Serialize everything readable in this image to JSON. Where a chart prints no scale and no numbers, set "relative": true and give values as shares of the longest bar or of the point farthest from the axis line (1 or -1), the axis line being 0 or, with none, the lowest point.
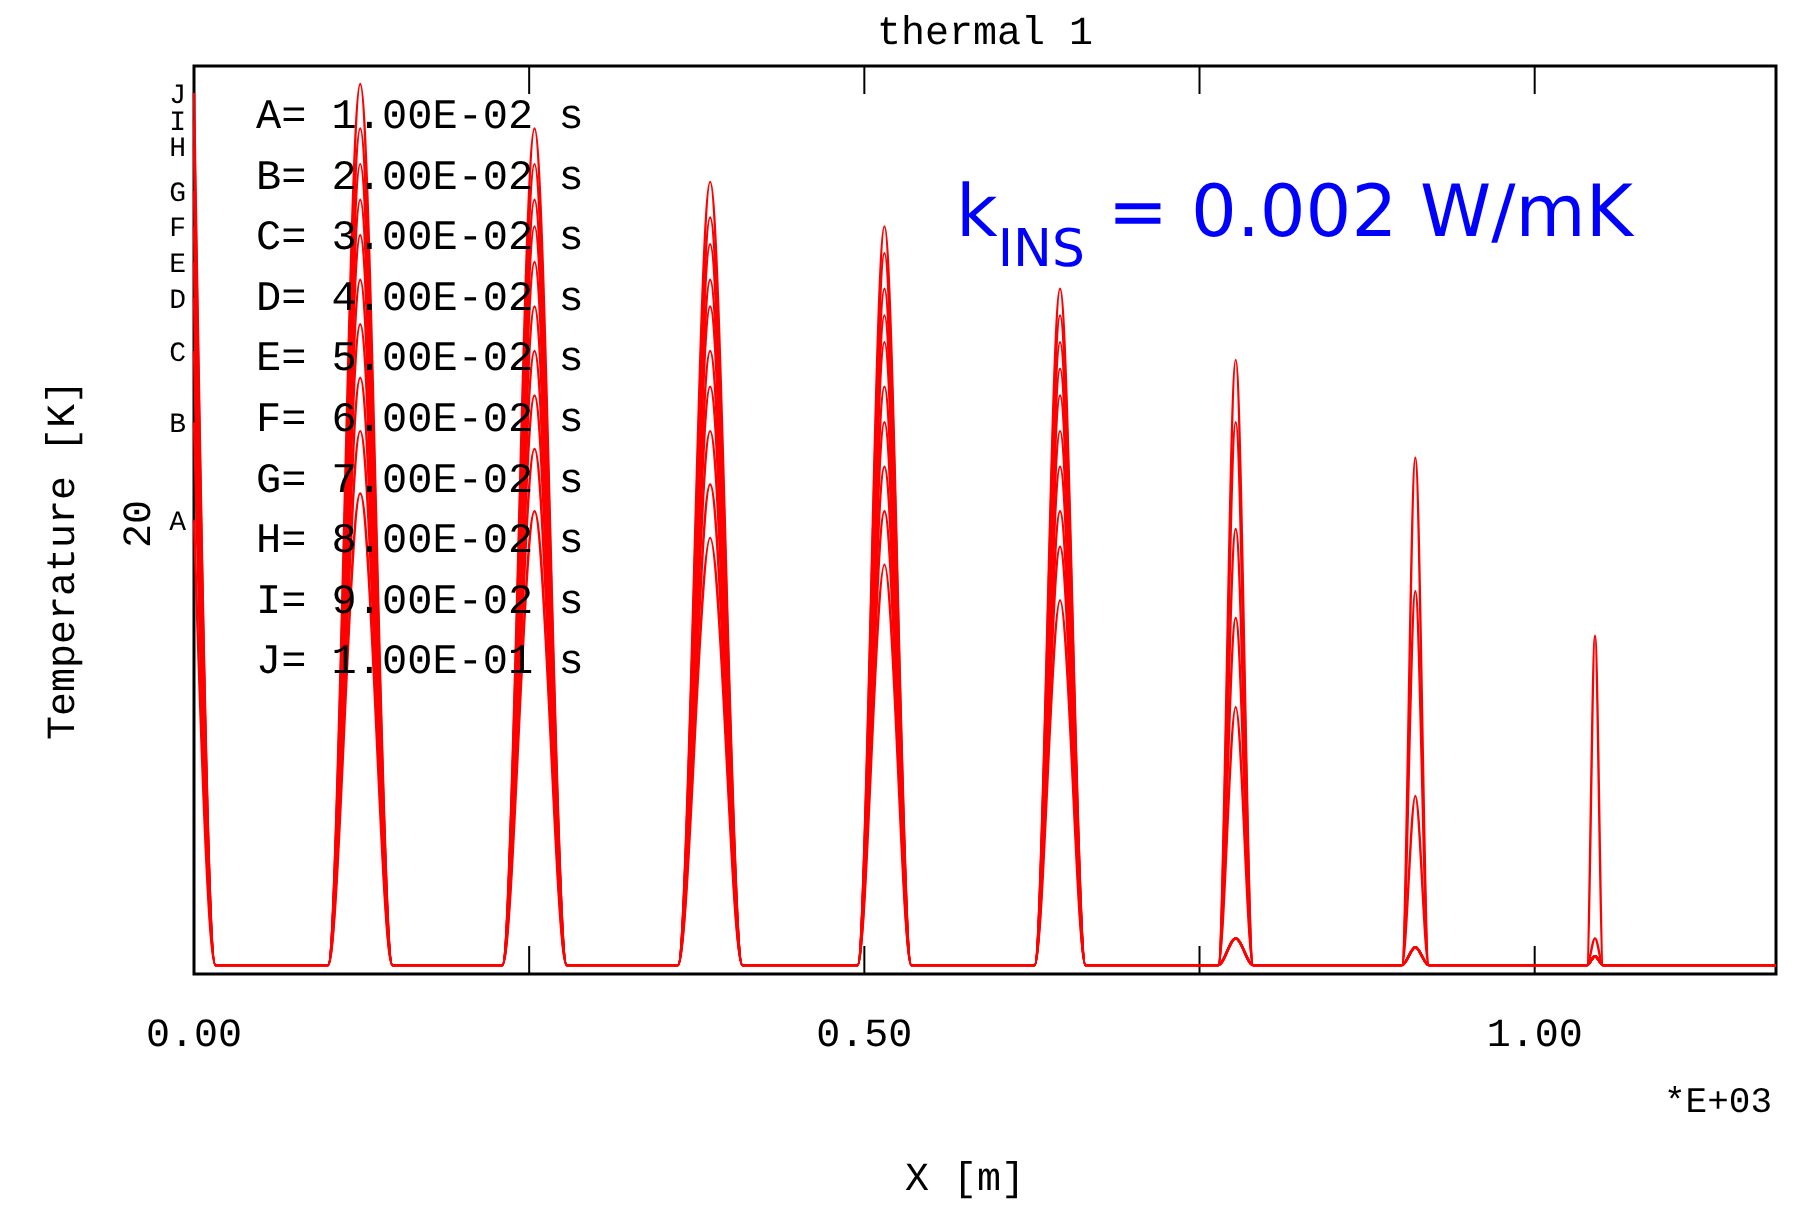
{
  "chart_data": {
    "type": "line",
    "title": "thermal 1",
    "xlabel": "X [m]",
    "ylabel": "Temperature [K]",
    "relative": true,
    "xlim": [
      0,
      1.18
    ],
    "xticks": [
      {
        "value": 0,
        "label": "0.00"
      },
      {
        "value": 0.25,
        "label": null
      },
      {
        "value": 0.5,
        "label": "0.50"
      },
      {
        "value": 0.75,
        "label": null
      },
      {
        "value": 1,
        "label": "1.00"
      }
    ],
    "x": [
      0,
      0.016,
      0.1,
      0.124,
      0.148,
      0.23,
      0.254,
      0.278,
      0.361,
      0.385,
      0.409,
      0.495,
      0.515,
      0.535,
      0.627,
      0.646,
      0.665,
      0.764,
      0.777,
      0.79,
      0.901,
      0.911,
      0.921,
      1.039,
      1.045,
      1.051,
      1.18
    ],
    "series": [
      {
        "name": "A",
        "color": "#ff0000",
        "values": [
          0.51,
          0.01,
          0.01,
          0.54,
          0.01,
          0.01,
          0.52,
          0.01,
          0.01,
          0.49,
          0.01,
          0.01,
          0.46,
          0.01,
          0.01,
          0.42,
          0.01,
          0.01,
          0.04,
          0.01,
          0.01,
          0.03,
          0.01,
          0.01,
          0.02,
          0.01,
          0.01
        ]
      },
      {
        "name": "B",
        "color": "#ff0000",
        "values": [
          0.62,
          0.01,
          0.01,
          0.61,
          0.01,
          0.01,
          0.59,
          0.01,
          0.01,
          0.55,
          0.01,
          0.01,
          0.52,
          0.01,
          0.01,
          0.48,
          0.01,
          0.01,
          0.04,
          0.01,
          0.01,
          0.03,
          0.01,
          0.01,
          0.02,
          0.01,
          0.01
        ]
      },
      {
        "name": "C",
        "color": "#ff0000",
        "values": [
          0.7,
          0.01,
          0.01,
          0.67,
          0.01,
          0.01,
          0.65,
          0.01,
          0.01,
          0.61,
          0.01,
          0.01,
          0.57,
          0.01,
          0.01,
          0.52,
          0.01,
          0.01,
          0.04,
          0.01,
          0.01,
          0.03,
          0.01,
          0.01,
          0.02,
          0.01,
          0.01
        ]
      },
      {
        "name": "D",
        "color": "#ff0000",
        "values": [
          0.76,
          0.01,
          0.01,
          0.73,
          0.01,
          0.01,
          0.7,
          0.01,
          0.01,
          0.66,
          0.01,
          0.01,
          0.62,
          0.01,
          0.01,
          0.57,
          0.01,
          0.01,
          0.04,
          0.01,
          0.01,
          0.03,
          0.01,
          0.01,
          0.02,
          0.01,
          0.01
        ]
      },
      {
        "name": "E",
        "color": "#ff0000",
        "values": [
          0.8,
          0.01,
          0.01,
          0.78,
          0.01,
          0.01,
          0.75,
          0.01,
          0.01,
          0.7,
          0.01,
          0.01,
          0.66,
          0.01,
          0.01,
          0.61,
          0.01,
          0.01,
          0.04,
          0.01,
          0.01,
          0.03,
          0.01,
          0.01,
          0.02,
          0.01,
          0.01
        ]
      },
      {
        "name": "F",
        "color": "#ff0000",
        "values": [
          0.84,
          0.01,
          0.01,
          0.83,
          0.01,
          0.01,
          0.8,
          0.01,
          0.01,
          0.75,
          0.01,
          0.01,
          0.71,
          0.01,
          0.01,
          0.65,
          0.01,
          0.01,
          0.3,
          0.01,
          0.01,
          0.03,
          0.01,
          0.01,
          0.02,
          0.01,
          0.01
        ]
      },
      {
        "name": "G",
        "color": "#ff0000",
        "values": [
          0.88,
          0.01,
          0.01,
          0.87,
          0.01,
          0.01,
          0.84,
          0.01,
          0.01,
          0.78,
          0.01,
          0.01,
          0.74,
          0.01,
          0.01,
          0.68,
          0.01,
          0.01,
          0.4,
          0.01,
          0.01,
          0.03,
          0.01,
          0.01,
          0.02,
          0.01,
          0.01
        ]
      },
      {
        "name": "H",
        "color": "#ff0000",
        "values": [
          0.93,
          0.01,
          0.01,
          0.91,
          0.01,
          0.01,
          0.87,
          0.01,
          0.01,
          0.82,
          0.01,
          0.01,
          0.77,
          0.01,
          0.01,
          0.71,
          0.01,
          0.01,
          0.5,
          0.01,
          0.01,
          0.2,
          0.01,
          0.01,
          0.02,
          0.01,
          0.01
        ]
      },
      {
        "name": "I",
        "color": "#ff0000",
        "values": [
          0.96,
          0.01,
          0.01,
          0.95,
          0.01,
          0.01,
          0.91,
          0.01,
          0.01,
          0.85,
          0.01,
          0.01,
          0.81,
          0.01,
          0.01,
          0.74,
          0.01,
          0.01,
          0.62,
          0.01,
          0.01,
          0.43,
          0.01,
          0.01,
          0.04,
          0.01,
          0.01
        ]
      },
      {
        "name": "J",
        "color": "#ff0000",
        "values": [
          0.99,
          0.01,
          0.01,
          1,
          0.01,
          0.01,
          0.95,
          0.01,
          0.01,
          0.89,
          0.01,
          0.01,
          0.84,
          0.01,
          0.01,
          0.77,
          0.01,
          0.01,
          0.69,
          0.01,
          0.01,
          0.58,
          0.01,
          0.01,
          0.38,
          0.01,
          0.01
        ]
      }
    ],
    "marker": "none",
    "line_style": "solid",
    "grid": false,
    "annotations": [
      "k$_{INS}$ = 0.002 W/mK",
      "*E+03",
      "20",
      "A= 1.00E-02 s",
      "B= 2.00E-02 s",
      "C= 3.00E-02 s",
      "D= 4.00E-02 s",
      "E= 5.00E-02 s",
      "F= 6.00E-02 s",
      "G= 7.00E-02 s",
      "H= 8.00E-02 s",
      "I= 9.00E-02 s",
      "J= 1.00E-01 s"
    ]
  }
}
